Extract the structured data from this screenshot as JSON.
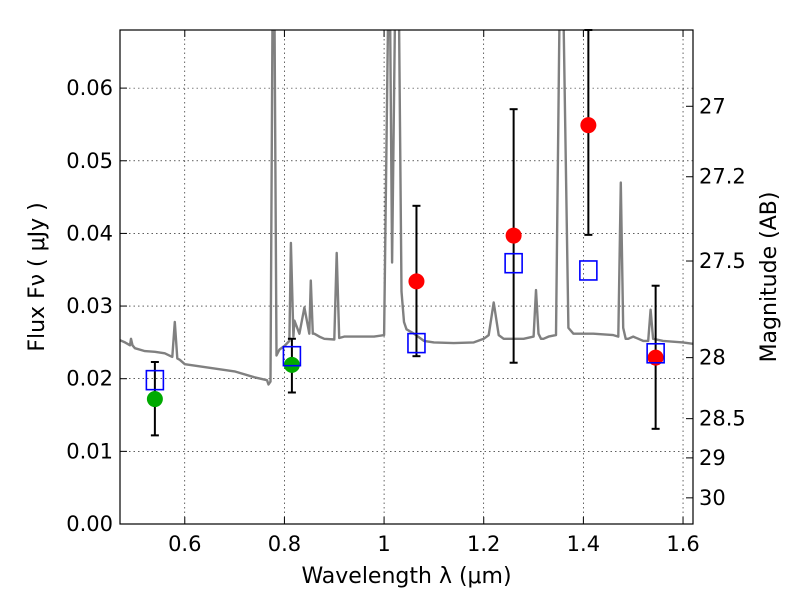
{
  "chart_data": {
    "type": "scatter",
    "xlabel": "Wavelength  λ (μm)",
    "ylabel": "Flux  Fν  ( μJy )",
    "ylabel_right": "Magnitude (AB)",
    "xlim": [
      0.47,
      1.62
    ],
    "ylim": [
      0.0,
      0.068
    ],
    "grid": true,
    "x_ticks": [
      {
        "value": 0.6,
        "label": "0.6"
      },
      {
        "value": 0.8,
        "label": "0.8"
      },
      {
        "value": 1.0,
        "label": "1"
      },
      {
        "value": 1.2,
        "label": "1.2"
      },
      {
        "value": 1.4,
        "label": "1.4"
      },
      {
        "value": 1.6,
        "label": "1.6"
      }
    ],
    "y_ticks": [
      {
        "value": 0.0,
        "label": "0.00"
      },
      {
        "value": 0.01,
        "label": "0.01"
      },
      {
        "value": 0.02,
        "label": "0.02"
      },
      {
        "value": 0.03,
        "label": "0.03"
      },
      {
        "value": 0.04,
        "label": "0.04"
      },
      {
        "value": 0.05,
        "label": "0.05"
      },
      {
        "value": 0.06,
        "label": "0.06"
      }
    ],
    "right_ticks": [
      {
        "flux": 0.0575,
        "label": "27"
      },
      {
        "flux": 0.0478,
        "label": "27.2"
      },
      {
        "flux": 0.0362,
        "label": "27.5"
      },
      {
        "flux": 0.0229,
        "label": "28"
      },
      {
        "flux": 0.0145,
        "label": "28.5"
      },
      {
        "flux": 0.0091,
        "label": "29"
      },
      {
        "flux": 0.0036,
        "label": "30"
      }
    ],
    "spectrum": {
      "name": "model spectrum",
      "color": "#808080",
      "x": [
        0.47,
        0.48,
        0.49,
        0.492,
        0.495,
        0.5,
        0.52,
        0.54,
        0.56,
        0.575,
        0.58,
        0.585,
        0.59,
        0.6,
        0.65,
        0.7,
        0.74,
        0.765,
        0.768,
        0.772,
        0.776,
        0.78,
        0.784,
        0.79,
        0.8,
        0.81,
        0.813,
        0.818,
        0.82,
        0.83,
        0.84,
        0.85,
        0.853,
        0.857,
        0.86,
        0.87,
        0.88,
        0.9,
        0.905,
        0.91,
        0.92,
        0.95,
        0.98,
        1.0,
        1.008,
        1.012,
        1.016,
        1.022,
        1.03,
        1.035,
        1.04,
        1.045,
        1.06,
        1.08,
        1.1,
        1.14,
        1.18,
        1.2,
        1.21,
        1.22,
        1.23,
        1.24,
        1.28,
        1.3,
        1.305,
        1.31,
        1.315,
        1.32,
        1.33,
        1.345,
        1.352,
        1.36,
        1.37,
        1.38,
        1.4,
        1.42,
        1.46,
        1.47,
        1.475,
        1.48,
        1.485,
        1.49,
        1.5,
        1.52,
        1.53,
        1.535,
        1.54,
        1.56,
        1.6,
        1.62
      ],
      "y": [
        0.0253,
        0.025,
        0.0246,
        0.0255,
        0.0246,
        0.0242,
        0.0238,
        0.0237,
        0.0235,
        0.023,
        0.0278,
        0.0228,
        0.0226,
        0.022,
        0.0215,
        0.021,
        0.0202,
        0.0198,
        0.0192,
        0.0196,
        0.07,
        0.07,
        0.0232,
        0.024,
        0.0245,
        0.0252,
        0.0387,
        0.0258,
        0.028,
        0.0262,
        0.0298,
        0.0262,
        0.0335,
        0.0262,
        0.0262,
        0.0258,
        0.0255,
        0.0254,
        0.0373,
        0.0256,
        0.0258,
        0.0258,
        0.0258,
        0.026,
        0.07,
        0.07,
        0.036,
        0.07,
        0.07,
        0.032,
        0.0278,
        0.0268,
        0.0262,
        0.0252,
        0.025,
        0.0249,
        0.025,
        0.0255,
        0.026,
        0.0305,
        0.026,
        0.0255,
        0.0255,
        0.0258,
        0.0322,
        0.0262,
        0.0255,
        0.0255,
        0.0258,
        0.026,
        0.07,
        0.07,
        0.027,
        0.0262,
        0.0262,
        0.0262,
        0.026,
        0.0258,
        0.047,
        0.027,
        0.0255,
        0.0255,
        0.0258,
        0.0252,
        0.0252,
        0.0295,
        0.0255,
        0.0252,
        0.025,
        0.0248
      ]
    },
    "series": [
      {
        "name": "green points",
        "marker": "circle",
        "color": "#00aa00",
        "points": [
          {
            "x": 0.54,
            "y": 0.0172
          },
          {
            "x": 0.815,
            "y": 0.0219
          }
        ]
      },
      {
        "name": "red points",
        "marker": "circle",
        "color": "#ff0000",
        "points": [
          {
            "x": 1.065,
            "y": 0.0334
          },
          {
            "x": 1.26,
            "y": 0.0397
          },
          {
            "x": 1.41,
            "y": 0.0549
          },
          {
            "x": 1.545,
            "y": 0.0229
          }
        ]
      },
      {
        "name": "blue squares",
        "marker": "square",
        "color": "#0000ff",
        "points": [
          {
            "x": 0.54,
            "y": 0.0198
          },
          {
            "x": 0.815,
            "y": 0.0231
          },
          {
            "x": 1.065,
            "y": 0.0249
          },
          {
            "x": 1.26,
            "y": 0.0359
          },
          {
            "x": 1.41,
            "y": 0.0349
          },
          {
            "x": 1.545,
            "y": 0.0235
          }
        ]
      }
    ],
    "error_bars": [
      {
        "x": 0.54,
        "low": 0.0122,
        "high": 0.0223
      },
      {
        "x": 0.815,
        "low": 0.0181,
        "high": 0.0255
      },
      {
        "x": 1.065,
        "low": 0.0231,
        "high": 0.0438
      },
      {
        "x": 1.26,
        "low": 0.0222,
        "high": 0.0571
      },
      {
        "x": 1.41,
        "low": 0.0398,
        "high": 0.068
      },
      {
        "x": 1.545,
        "low": 0.0131,
        "high": 0.0328
      }
    ]
  }
}
